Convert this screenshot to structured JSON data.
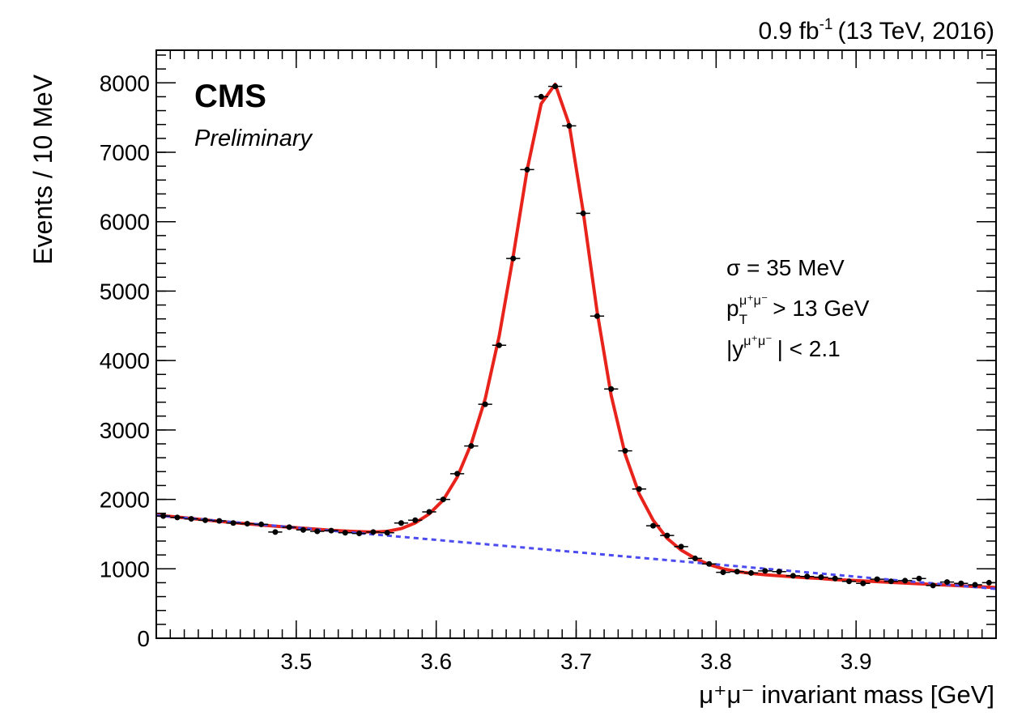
{
  "chart_data": {
    "type": "scatter",
    "lumi": {
      "text": "0.9 fb",
      "superscript": "-1",
      "suffix": "(13 TeV, 2016)"
    },
    "experiment": "CMS",
    "status": "Preliminary",
    "annotations": [
      {
        "base": "σ = 35 MeV"
      },
      {
        "base": "p",
        "sub": "T",
        "sup": "μ⁺μ⁻",
        "text": "> 13 GeV"
      },
      {
        "base": "|y",
        "sup": "μ⁺μ⁻",
        "text": "| < 2.1"
      }
    ],
    "x_label": "μ⁺μ⁻ invariant mass [GeV]",
    "y_label": "Events / 10 MeV",
    "xlim": [
      3.4,
      4.0
    ],
    "ylim": [
      0,
      8470
    ],
    "xticks": [
      3.5,
      3.6,
      3.7,
      3.8,
      3.9
    ],
    "yticks": [
      0,
      1000,
      2000,
      3000,
      4000,
      5000,
      6000,
      7000,
      8000
    ],
    "series": [
      {
        "style": "line",
        "color": "#e8231b",
        "x": [
          3.4,
          3.405,
          3.415,
          3.425,
          3.435,
          3.445,
          3.455,
          3.465,
          3.475,
          3.485,
          3.495,
          3.505,
          3.515,
          3.525,
          3.535,
          3.545,
          3.555,
          3.565,
          3.575,
          3.585,
          3.595,
          3.605,
          3.615,
          3.625,
          3.635,
          3.645,
          3.655,
          3.665,
          3.675,
          3.685,
          3.695,
          3.705,
          3.715,
          3.725,
          3.735,
          3.745,
          3.755,
          3.765,
          3.775,
          3.785,
          3.795,
          3.805,
          3.815,
          3.825,
          3.835,
          3.845,
          3.855,
          3.865,
          3.875,
          3.885,
          3.895,
          3.905,
          3.915,
          3.925,
          3.935,
          3.945,
          3.955,
          3.965,
          3.975,
          3.985,
          3.995,
          4.0
        ],
        "values": [
          1775,
          1765,
          1745,
          1725,
          1705,
          1685,
          1665,
          1650,
          1630,
          1615,
          1600,
          1585,
          1570,
          1555,
          1545,
          1535,
          1530,
          1540,
          1580,
          1660,
          1790,
          1990,
          2320,
          2800,
          3450,
          4350,
          5500,
          6750,
          7700,
          7980,
          7400,
          6150,
          4700,
          3500,
          2650,
          2080,
          1700,
          1440,
          1270,
          1150,
          1060,
          1000,
          960,
          935,
          915,
          900,
          885,
          870,
          860,
          845,
          835,
          825,
          815,
          805,
          795,
          785,
          775,
          765,
          755,
          745,
          735,
          730
        ]
      },
      {
        "style": "dashed",
        "color": "#4b4bf0",
        "x": [
          3.4,
          4.0
        ],
        "values": [
          1770,
          710
        ]
      },
      {
        "style": "points",
        "color": "#000000",
        "x": [
          3.405,
          3.415,
          3.425,
          3.435,
          3.445,
          3.455,
          3.465,
          3.475,
          3.485,
          3.495,
          3.505,
          3.515,
          3.525,
          3.535,
          3.545,
          3.555,
          3.565,
          3.575,
          3.585,
          3.595,
          3.605,
          3.615,
          3.625,
          3.635,
          3.645,
          3.655,
          3.665,
          3.675,
          3.685,
          3.695,
          3.705,
          3.715,
          3.725,
          3.735,
          3.745,
          3.755,
          3.765,
          3.775,
          3.785,
          3.795,
          3.805,
          3.815,
          3.825,
          3.835,
          3.845,
          3.855,
          3.865,
          3.875,
          3.885,
          3.895,
          3.905,
          3.915,
          3.925,
          3.935,
          3.945,
          3.955,
          3.965,
          3.975,
          3.985,
          3.995
        ],
        "values": [
          1760,
          1740,
          1720,
          1700,
          1690,
          1660,
          1650,
          1640,
          1530,
          1600,
          1560,
          1540,
          1550,
          1520,
          1510,
          1530,
          1520,
          1660,
          1700,
          1820,
          2000,
          2370,
          2770,
          3370,
          4220,
          5470,
          6750,
          7800,
          7950,
          7380,
          6120,
          4640,
          3590,
          2700,
          2150,
          1620,
          1480,
          1320,
          1150,
          1070,
          950,
          960,
          940,
          970,
          960,
          900,
          890,
          880,
          860,
          820,
          790,
          850,
          820,
          830,
          860,
          760,
          810,
          790,
          770,
          800
        ]
      }
    ]
  }
}
